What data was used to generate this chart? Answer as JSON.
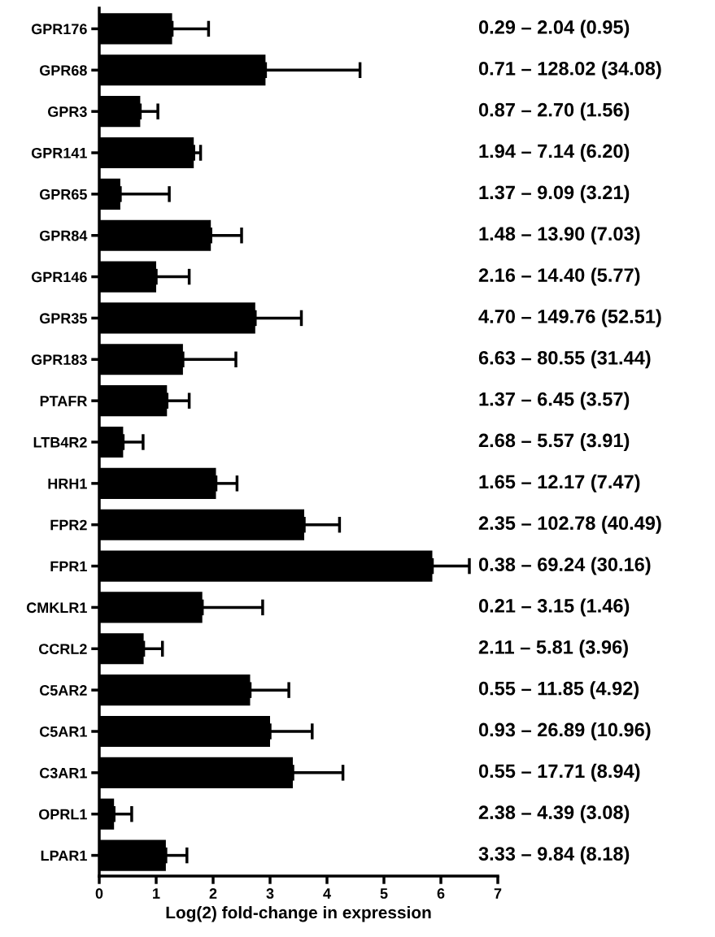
{
  "chart_data": {
    "type": "bar",
    "orientation": "horizontal",
    "xlabel": "Log(2) fold-change in expression",
    "categories": [
      "GPR176",
      "GPR68",
      "GPR3",
      "GPR141",
      "GPR65",
      "GPR84",
      "GPR146",
      "GPR35",
      "GPR183",
      "PTAFR",
      "LTB4R2",
      "HRH1",
      "FPR2",
      "FPR1",
      "CMKLR1",
      "CCRL2",
      "C5AR2",
      "C5AR1",
      "C3AR1",
      "OPRL1",
      "LPAR1"
    ],
    "values": [
      1.28,
      2.92,
      0.72,
      1.66,
      0.37,
      1.96,
      1.0,
      2.74,
      1.47,
      1.19,
      0.42,
      2.05,
      3.6,
      5.85,
      1.81,
      0.78,
      2.65,
      3.0,
      3.4,
      0.26,
      1.17
    ],
    "errors": [
      [
        1.28,
        1.92
      ],
      [
        2.92,
        4.58
      ],
      [
        0.72,
        1.03
      ],
      [
        1.66,
        1.78
      ],
      [
        0.37,
        1.23
      ],
      [
        1.96,
        2.5
      ],
      [
        1.0,
        1.58
      ],
      [
        2.74,
        3.55
      ],
      [
        1.47,
        2.4
      ],
      [
        1.19,
        1.58
      ],
      [
        0.42,
        0.77
      ],
      [
        2.05,
        2.42
      ],
      [
        3.6,
        4.22
      ],
      [
        5.85,
        6.5
      ],
      [
        1.81,
        2.87
      ],
      [
        0.78,
        1.11
      ],
      [
        2.65,
        3.33
      ],
      [
        3.0,
        3.74
      ],
      [
        3.4,
        4.28
      ],
      [
        0.26,
        0.57
      ],
      [
        1.17,
        1.54
      ]
    ],
    "color": "#000000",
    "xlim": [
      0,
      7
    ],
    "xticks": [
      0,
      1,
      2,
      3,
      4,
      5,
      6,
      7
    ],
    "grid": false,
    "legend": false,
    "annotations": [
      "0.29 – 2.04 (0.95)",
      "0.71 – 128.02 (34.08)",
      "0.87 – 2.70 (1.56)",
      "1.94 – 7.14 (6.20)",
      "1.37 – 9.09 (3.21)",
      "1.48 – 13.90 (7.03)",
      "2.16 – 14.40 (5.77)",
      "4.70 – 149.76 (52.51)",
      "6.63 – 80.55 (31.44)",
      "1.37 – 6.45 (3.57)",
      "2.68 – 5.57 (3.91)",
      "1.65 – 12.17 (7.47)",
      "2.35 – 102.78 (40.49)",
      "0.38 – 69.24 (30.16)",
      "0.21 – 3.15 (1.46)",
      "2.11 – 5.81 (3.96)",
      "0.55 – 11.85 (4.92)",
      "0.93 – 26.89 (10.96)",
      "0.55 – 17.71 (8.94)",
      "2.38 – 4.39 (3.08)",
      "3.33 – 9.84 (8.18)"
    ]
  }
}
